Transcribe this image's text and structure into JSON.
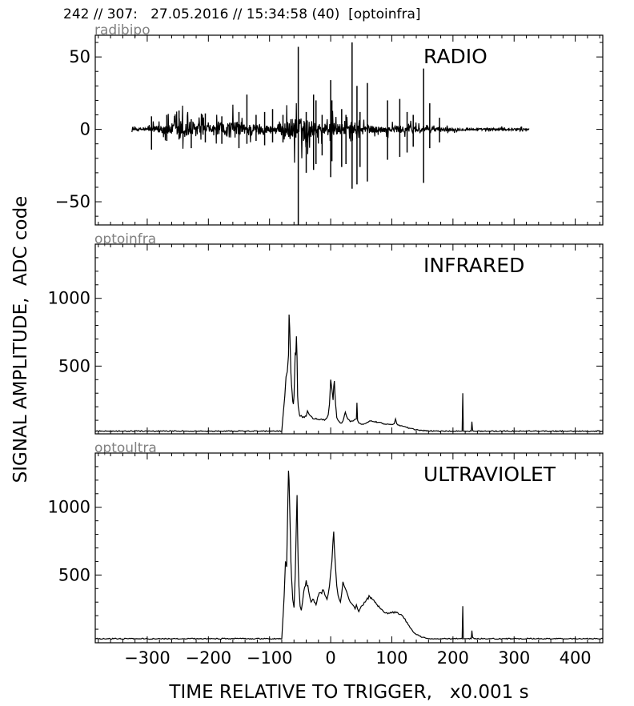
{
  "header": "242 // 307:   27.05.2016 // 15:34:58 (40)  [optoinfra]",
  "chart_data": [
    {
      "type": "line",
      "source_label": "radibipo",
      "title": "RADIO",
      "xlim": [
        -385,
        445
      ],
      "ylim": [
        -66,
        65
      ],
      "yticks": [
        -50,
        0,
        50
      ],
      "envelope": [
        [
          -325,
          2
        ],
        [
          -300,
          3
        ],
        [
          -280,
          8
        ],
        [
          -260,
          12
        ],
        [
          -240,
          20
        ],
        [
          -220,
          14
        ],
        [
          -200,
          8
        ],
        [
          -180,
          12
        ],
        [
          -160,
          18
        ],
        [
          -140,
          10
        ],
        [
          -120,
          12
        ],
        [
          -100,
          8
        ],
        [
          -80,
          12
        ],
        [
          -60,
          25
        ],
        [
          -40,
          20
        ],
        [
          -20,
          10
        ],
        [
          0,
          14
        ],
        [
          20,
          10
        ],
        [
          40,
          10
        ],
        [
          60,
          8
        ],
        [
          80,
          6
        ],
        [
          100,
          6
        ],
        [
          120,
          8
        ],
        [
          140,
          6
        ],
        [
          160,
          6
        ],
        [
          180,
          4
        ],
        [
          200,
          3
        ],
        [
          220,
          2
        ],
        [
          240,
          2
        ],
        [
          260,
          2
        ],
        [
          280,
          2
        ],
        [
          300,
          2
        ],
        [
          325,
          2
        ]
      ],
      "spikes": [
        [
          -293,
          9,
          -14
        ],
        [
          -268,
          10,
          -8
        ],
        [
          -248,
          13,
          -7
        ],
        [
          -228,
          7,
          -13
        ],
        [
          -205,
          11,
          -9
        ],
        [
          -178,
          9,
          -10
        ],
        [
          -150,
          12,
          -13
        ],
        [
          -137,
          24,
          -10
        ],
        [
          -122,
          10,
          -8
        ],
        [
          -108,
          12,
          -11
        ],
        [
          -95,
          14,
          -9
        ],
        [
          -78,
          10,
          -9
        ],
        [
          -53,
          57,
          -66
        ],
        [
          -40,
          12,
          -30
        ],
        [
          -28,
          24,
          -28
        ],
        [
          -24,
          20,
          -24
        ],
        [
          -14,
          10,
          -18
        ],
        [
          0,
          34,
          -33
        ],
        [
          2,
          20,
          -22
        ],
        [
          18,
          14,
          -26
        ],
        [
          25,
          10,
          -24
        ],
        [
          35,
          60,
          -41
        ],
        [
          43,
          30,
          -38
        ],
        [
          48,
          12,
          -26
        ],
        [
          60,
          32,
          -36
        ],
        [
          93,
          20,
          -21
        ],
        [
          113,
          21,
          -19
        ],
        [
          125,
          12,
          -16
        ],
        [
          135,
          10,
          -12
        ],
        [
          152,
          42,
          -37
        ],
        [
          162,
          18,
          -13
        ],
        [
          178,
          8,
          -9
        ]
      ],
      "noise_range": [
        -325,
        325
      ]
    },
    {
      "type": "line",
      "source_label": "optoinfra",
      "title": "INFRARED",
      "xlim": [
        -385,
        445
      ],
      "ylim": [
        0,
        1400
      ],
      "yticks": [
        500,
        1000
      ],
      "x": [
        -385,
        -80,
        -75,
        -73,
        -71,
        -69,
        -68,
        -67,
        -66,
        -65,
        -64,
        -63,
        -62,
        -61,
        -60,
        -58,
        -57,
        -56,
        -55,
        -54,
        -53,
        -52,
        -51,
        -50,
        -48,
        -46,
        -40,
        -38,
        -36,
        -32,
        -28,
        -24,
        -20,
        -15,
        -10,
        -6,
        -4,
        -2,
        0,
        2,
        4,
        5,
        6,
        7,
        8,
        9,
        10,
        12,
        14,
        16,
        18,
        20,
        24,
        26,
        28,
        32,
        38,
        42,
        43,
        44,
        46,
        50,
        55,
        60,
        65,
        70,
        80,
        90,
        100,
        104,
        106,
        108,
        110,
        115,
        120,
        130,
        140,
        150,
        160,
        170,
        180,
        190,
        200,
        212,
        215,
        216,
        217,
        218,
        220,
        230,
        231,
        232,
        233,
        235,
        240,
        250,
        260,
        445
      ],
      "y": [
        20,
        20,
        280,
        420,
        460,
        580,
        880,
        780,
        600,
        450,
        360,
        300,
        240,
        220,
        280,
        600,
        580,
        720,
        560,
        280,
        200,
        170,
        140,
        130,
        135,
        120,
        130,
        170,
        150,
        130,
        110,
        115,
        105,
        110,
        100,
        120,
        140,
        220,
        400,
        330,
        250,
        350,
        390,
        300,
        220,
        170,
        120,
        100,
        90,
        80,
        80,
        95,
        160,
        130,
        110,
        90,
        100,
        110,
        230,
        100,
        80,
        70,
        75,
        85,
        95,
        90,
        85,
        70,
        70,
        75,
        110,
        75,
        65,
        60,
        55,
        40,
        30,
        25,
        22,
        20,
        20,
        20,
        20,
        20,
        20,
        300,
        20,
        20,
        20,
        20,
        90,
        30,
        20,
        20,
        20,
        20,
        20,
        20
      ]
    },
    {
      "type": "line",
      "source_label": "optoultra",
      "title": "ULTRAVIOLET",
      "xlim": [
        -385,
        445
      ],
      "ylim": [
        0,
        1400
      ],
      "yticks": [
        500,
        1000
      ],
      "x": [
        -385,
        -80,
        -76,
        -74,
        -72,
        -70,
        -69,
        -68,
        -67,
        -66,
        -65,
        -64,
        -63,
        -62,
        -60,
        -58,
        -56,
        -55,
        -54,
        -53,
        -52,
        -51,
        -50,
        -48,
        -46,
        -44,
        -40,
        -36,
        -32,
        -28,
        -24,
        -20,
        -16,
        -12,
        -8,
        -6,
        -4,
        -2,
        0,
        2,
        4,
        5,
        6,
        8,
        10,
        12,
        14,
        16,
        18,
        20,
        22,
        24,
        26,
        28,
        30,
        32,
        34,
        36,
        38,
        40,
        42,
        44,
        46,
        48,
        50,
        55,
        60,
        64,
        68,
        72,
        76,
        80,
        85,
        90,
        95,
        100,
        105,
        110,
        115,
        120,
        125,
        130,
        135,
        140,
        145,
        150,
        155,
        160,
        165,
        170,
        175,
        180,
        185,
        190,
        200,
        212,
        215,
        216,
        217,
        220,
        230,
        231,
        232,
        235,
        260,
        445
      ],
      "y": [
        30,
        30,
        350,
        600,
        560,
        1050,
        1270,
        1200,
        1000,
        800,
        600,
        480,
        400,
        320,
        260,
        500,
        900,
        1090,
        800,
        560,
        420,
        350,
        270,
        240,
        300,
        380,
        460,
        380,
        300,
        320,
        280,
        350,
        370,
        390,
        340,
        320,
        360,
        420,
        520,
        600,
        760,
        820,
        700,
        550,
        420,
        350,
        320,
        300,
        360,
        450,
        420,
        400,
        380,
        350,
        320,
        300,
        290,
        280,
        270,
        250,
        280,
        250,
        230,
        250,
        270,
        300,
        330,
        340,
        320,
        300,
        280,
        260,
        240,
        220,
        220,
        220,
        230,
        220,
        210,
        180,
        150,
        110,
        80,
        60,
        50,
        40,
        35,
        30,
        30,
        30,
        30,
        30,
        30,
        30,
        30,
        30,
        30,
        270,
        30,
        30,
        30,
        90,
        40,
        30,
        30,
        30
      ]
    }
  ],
  "xticks": [
    -300,
    -200,
    -100,
    0,
    100,
    200,
    300,
    400
  ],
  "xlabel": "TIME RELATIVE TO TRIGGER,   x0.001 s",
  "ylabel": "SIGNAL AMPLITUDE,  ADC code"
}
